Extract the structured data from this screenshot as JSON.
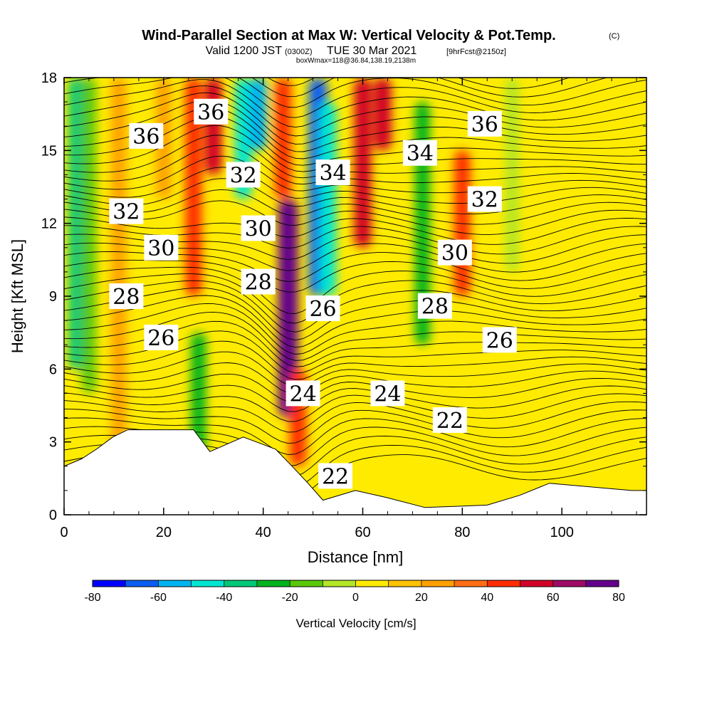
{
  "header": {
    "title": "Wind-Parallel Section at Max W: Vertical Velocity & Pot.Temp.",
    "copyright": "(C)",
    "valid_prefix": "Valid 1200 JST",
    "valid_zulu": "(0300Z)",
    "valid_date": "TUE 30 Mar 2021",
    "forecast": "[9hrFcst@2150z]",
    "box_info": "boxWmax=118@36.84,138.19,2138m"
  },
  "chart_data": {
    "type": "heatmap",
    "xlabel": "Distance [nm]",
    "ylabel": "Height [Kft MSL]",
    "xlim": [
      0,
      117
    ],
    "ylim": [
      0,
      18
    ],
    "x_ticks": [
      0,
      20,
      40,
      60,
      80,
      100
    ],
    "y_ticks": [
      0,
      3,
      6,
      9,
      12,
      15,
      18
    ],
    "grid": false,
    "colorbar": {
      "label": "Vertical Velocity [cm/s]",
      "min": -80,
      "max": 80,
      "tick_values": [
        -80,
        -60,
        -40,
        -20,
        0,
        20,
        40,
        60,
        80
      ],
      "tick_labels": [
        "-80",
        "-60",
        "-40",
        "-20",
        "0",
        "20",
        "40",
        "60",
        "80"
      ],
      "levels": [
        -80,
        -70,
        -60,
        -50,
        -40,
        -30,
        -20,
        -10,
        0,
        10,
        20,
        30,
        40,
        50,
        60,
        70,
        80
      ],
      "colors": [
        "#0000ff",
        "#0a5ef2",
        "#00b4f0",
        "#00e6d2",
        "#00c878",
        "#00b41e",
        "#5ac80a",
        "#b4e628",
        "#ffeb00",
        "#ffc300",
        "#ffa000",
        "#ff6e14",
        "#ff2d00",
        "#d20028",
        "#a00a64",
        "#64008c"
      ]
    },
    "velocity_features": [
      {
        "x": 2.5,
        "y0": 6,
        "y1": 18,
        "v": -35
      },
      {
        "x": 5,
        "y0": 5,
        "y1": 18,
        "v": -20
      },
      {
        "x": 11,
        "y0": 0,
        "y1": 18,
        "v": 25
      },
      {
        "x": 20,
        "y0": 13,
        "y1": 18,
        "v": 25
      },
      {
        "x": 26,
        "y0": 9,
        "y1": 18,
        "v": 45
      },
      {
        "x": 30,
        "y0": 14,
        "y1": 18,
        "v": 50
      },
      {
        "x": 27,
        "y0": 2.5,
        "y1": 7.5,
        "v": -25
      },
      {
        "x": 36,
        "y0": 13,
        "y1": 18,
        "v": -45
      },
      {
        "x": 39,
        "y0": 15,
        "y1": 18,
        "v": -60
      },
      {
        "x": 44,
        "y0": 13,
        "y1": 18,
        "v": 45
      },
      {
        "x": 45,
        "y0": 4,
        "y1": 13,
        "v": 80
      },
      {
        "x": 47,
        "y0": 2,
        "y1": 6,
        "v": 45
      },
      {
        "x": 51,
        "y0": 9,
        "y1": 18,
        "v": -65
      },
      {
        "x": 53,
        "y0": 9,
        "y1": 17,
        "v": -45
      },
      {
        "x": 60,
        "y0": 11,
        "y1": 18,
        "v": 50
      },
      {
        "x": 64,
        "y0": 15,
        "y1": 18,
        "v": 55
      },
      {
        "x": 72,
        "y0": 7,
        "y1": 17,
        "v": -25
      },
      {
        "x": 80,
        "y0": 9,
        "y1": 15,
        "v": 40
      },
      {
        "x": 90,
        "y0": 10,
        "y1": 18,
        "v": -10
      }
    ],
    "contour_labels": [
      {
        "text": "36",
        "x": 16.5,
        "y": 15.6
      },
      {
        "text": "36",
        "x": 29.5,
        "y": 16.6
      },
      {
        "text": "32",
        "x": 12.5,
        "y": 12.5
      },
      {
        "text": "32",
        "x": 36,
        "y": 14.0
      },
      {
        "text": "30",
        "x": 19.5,
        "y": 11.0
      },
      {
        "text": "30",
        "x": 39,
        "y": 11.8
      },
      {
        "text": "28",
        "x": 12.5,
        "y": 9.0
      },
      {
        "text": "28",
        "x": 39,
        "y": 9.6
      },
      {
        "text": "26",
        "x": 19.5,
        "y": 7.3
      },
      {
        "text": "26",
        "x": 52,
        "y": 8.5
      },
      {
        "text": "34",
        "x": 54,
        "y": 14.1
      },
      {
        "text": "34",
        "x": 71.5,
        "y": 14.9
      },
      {
        "text": "36",
        "x": 84.5,
        "y": 16.1
      },
      {
        "text": "32",
        "x": 84.5,
        "y": 13.0
      },
      {
        "text": "30",
        "x": 78.5,
        "y": 10.8
      },
      {
        "text": "28",
        "x": 74.5,
        "y": 8.6
      },
      {
        "text": "26",
        "x": 87.5,
        "y": 7.2
      },
      {
        "text": "24",
        "x": 48,
        "y": 5.0
      },
      {
        "text": "24",
        "x": 65,
        "y": 5.0
      },
      {
        "text": "22",
        "x": 77.5,
        "y": 3.9
      },
      {
        "text": "22",
        "x": 54.5,
        "y": 1.6
      }
    ],
    "terrain_profile": [
      [
        0,
        2.0
      ],
      [
        3.5,
        2.3
      ],
      [
        6.5,
        2.7
      ],
      [
        9.8,
        3.2
      ],
      [
        12.8,
        3.5
      ],
      [
        26,
        3.5
      ],
      [
        29.3,
        2.6
      ],
      [
        36,
        3.2
      ],
      [
        42.5,
        2.7
      ],
      [
        45.8,
        2.0
      ],
      [
        49,
        1.3
      ],
      [
        52,
        0.6
      ],
      [
        58.5,
        1.0
      ],
      [
        65,
        0.7
      ],
      [
        72.5,
        0.3
      ],
      [
        85,
        0.4
      ],
      [
        91.5,
        0.8
      ],
      [
        97.5,
        1.3
      ],
      [
        114,
        1.0
      ],
      [
        117,
        1.0
      ]
    ]
  }
}
